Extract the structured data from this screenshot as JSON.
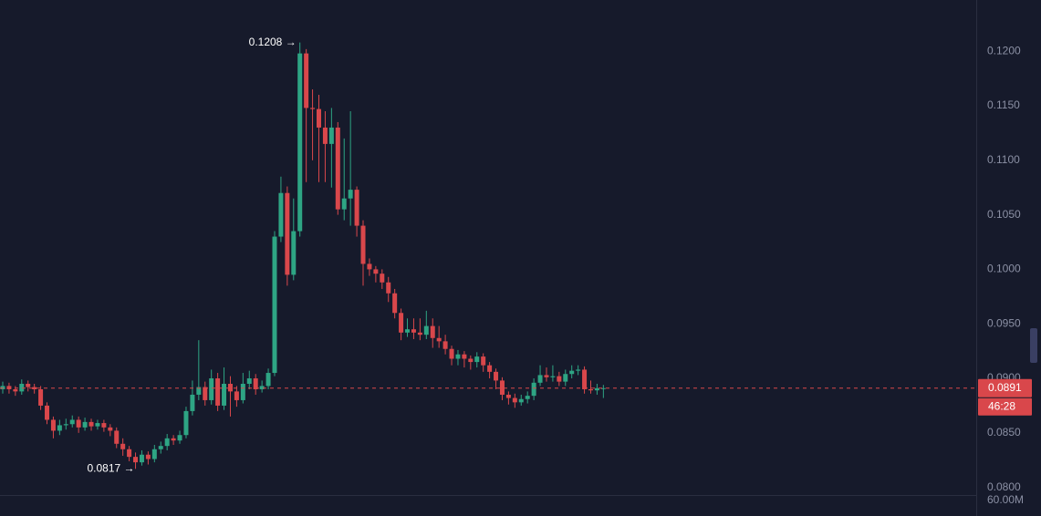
{
  "chart_data": {
    "type": "candlestick",
    "open": [
      0.089,
      0.0893,
      0.089,
      0.0888,
      0.0895,
      0.0892,
      0.089,
      0.0875,
      0.0862,
      0.0852,
      0.0857,
      0.0858,
      0.0862,
      0.0855,
      0.086,
      0.0856,
      0.0859,
      0.0855,
      0.0852,
      0.084,
      0.0835,
      0.0828,
      0.0823,
      0.083,
      0.0826,
      0.0835,
      0.0838,
      0.0845,
      0.0843,
      0.0848,
      0.087,
      0.0885,
      0.0892,
      0.088,
      0.09,
      0.0875,
      0.0895,
      0.0888,
      0.088,
      0.0895,
      0.09,
      0.089,
      0.0893,
      0.0905,
      0.103,
      0.107,
      0.0995,
      0.1035,
      0.1198,
      0.1148,
      0.1147,
      0.113,
      0.1115,
      0.113,
      0.1055,
      0.1065,
      0.1073,
      0.104,
      0.1005,
      0.1,
      0.0996,
      0.0988,
      0.0978,
      0.096,
      0.0942,
      0.0945,
      0.0942,
      0.094,
      0.0948,
      0.0937,
      0.0934,
      0.0927,
      0.0918,
      0.0922,
      0.0918,
      0.0915,
      0.092,
      0.0912,
      0.0906,
      0.0898,
      0.0885,
      0.0882,
      0.0878,
      0.0881,
      0.0884,
      0.0896,
      0.0903,
      0.0901,
      0.0902,
      0.0897,
      0.0904,
      0.0907,
      0.0908,
      0.089,
      0.0889,
      0.0891
    ],
    "high": [
      0.0897,
      0.0896,
      0.0893,
      0.0899,
      0.0898,
      0.0895,
      0.0893,
      0.0878,
      0.0865,
      0.0862,
      0.0863,
      0.0866,
      0.0865,
      0.0864,
      0.0863,
      0.0862,
      0.0862,
      0.0858,
      0.0855,
      0.0845,
      0.0838,
      0.0832,
      0.0834,
      0.0833,
      0.0839,
      0.0842,
      0.0849,
      0.0848,
      0.0852,
      0.0874,
      0.0898,
      0.0935,
      0.0897,
      0.0908,
      0.0905,
      0.091,
      0.0902,
      0.0893,
      0.0905,
      0.0907,
      0.0904,
      0.0898,
      0.0909,
      0.1035,
      0.1085,
      0.1076,
      0.1065,
      0.1208,
      0.1202,
      0.1165,
      0.116,
      0.1145,
      0.1148,
      0.1135,
      0.112,
      0.1145,
      0.1076,
      0.1045,
      0.101,
      0.1003,
      0.1,
      0.0993,
      0.0982,
      0.0964,
      0.0955,
      0.0955,
      0.0955,
      0.0962,
      0.0955,
      0.0948,
      0.094,
      0.093,
      0.0926,
      0.0925,
      0.0921,
      0.0924,
      0.0923,
      0.0915,
      0.0909,
      0.0901,
      0.0888,
      0.0886,
      0.0885,
      0.0888,
      0.09,
      0.0912,
      0.091,
      0.0912,
      0.0906,
      0.0908,
      0.0912,
      0.0912,
      0.0911,
      0.0898,
      0.0895,
      0.0894
    ],
    "low": [
      0.0886,
      0.0886,
      0.0884,
      0.0885,
      0.0888,
      0.0886,
      0.0871,
      0.0858,
      0.0845,
      0.0848,
      0.0853,
      0.0855,
      0.085,
      0.0852,
      0.0852,
      0.0853,
      0.0851,
      0.0847,
      0.0836,
      0.0829,
      0.0824,
      0.0817,
      0.082,
      0.0821,
      0.0823,
      0.0831,
      0.0834,
      0.0839,
      0.084,
      0.0845,
      0.0866,
      0.088,
      0.0875,
      0.0876,
      0.087,
      0.0871,
      0.0865,
      0.0874,
      0.0877,
      0.089,
      0.0885,
      0.0887,
      0.089,
      0.0902,
      0.1025,
      0.0985,
      0.099,
      0.103,
      0.108,
      0.11,
      0.108,
      0.108,
      0.1075,
      0.105,
      0.1045,
      0.104,
      0.103,
      0.0985,
      0.0994,
      0.0988,
      0.0982,
      0.097,
      0.0955,
      0.0935,
      0.0938,
      0.0936,
      0.0935,
      0.0936,
      0.0928,
      0.0928,
      0.0922,
      0.0912,
      0.0912,
      0.091,
      0.0908,
      0.091,
      0.0906,
      0.09,
      0.089,
      0.088,
      0.0876,
      0.0873,
      0.0875,
      0.0877,
      0.088,
      0.0893,
      0.0897,
      0.0897,
      0.0893,
      0.0893,
      0.09,
      0.0903,
      0.0886,
      0.0886,
      0.0885,
      0.0882
    ],
    "close": [
      0.0893,
      0.089,
      0.0888,
      0.0895,
      0.0892,
      0.089,
      0.0875,
      0.0862,
      0.0852,
      0.0857,
      0.0858,
      0.0862,
      0.0855,
      0.086,
      0.0856,
      0.0859,
      0.0855,
      0.0852,
      0.084,
      0.0835,
      0.0828,
      0.0823,
      0.083,
      0.0826,
      0.0835,
      0.0838,
      0.0845,
      0.0843,
      0.0848,
      0.087,
      0.0885,
      0.0892,
      0.088,
      0.09,
      0.0875,
      0.0895,
      0.0888,
      0.088,
      0.0895,
      0.09,
      0.089,
      0.0893,
      0.0905,
      0.103,
      0.107,
      0.0995,
      0.1035,
      0.1198,
      0.1148,
      0.1147,
      0.113,
      0.1115,
      0.113,
      0.1055,
      0.1065,
      0.1073,
      0.104,
      0.1005,
      0.1,
      0.0996,
      0.0988,
      0.0978,
      0.096,
      0.0942,
      0.0945,
      0.0942,
      0.094,
      0.0948,
      0.0937,
      0.0934,
      0.0927,
      0.0918,
      0.0922,
      0.0918,
      0.0915,
      0.092,
      0.0912,
      0.0906,
      0.0898,
      0.0885,
      0.0882,
      0.0878,
      0.0881,
      0.0884,
      0.0896,
      0.0903,
      0.0901,
      0.0902,
      0.0897,
      0.0904,
      0.0907,
      0.0908,
      0.089,
      0.0889,
      0.0891,
      0.0891
    ],
    "up_color": "#2ea584",
    "down_color": "#d9474b",
    "ylim": [
      0.0793,
      0.1247
    ],
    "yticks": [
      {
        "value": 0.08,
        "label": "0.0800"
      },
      {
        "value": 0.085,
        "label": "0.0850"
      },
      {
        "value": 0.09,
        "label": "0.0900"
      },
      {
        "value": 0.095,
        "label": "0.0950"
      },
      {
        "value": 0.1,
        "label": "0.1000"
      },
      {
        "value": 0.105,
        "label": "0.1050"
      },
      {
        "value": 0.11,
        "label": "0.1100"
      },
      {
        "value": 0.115,
        "label": "0.1150"
      },
      {
        "value": 0.12,
        "label": "0.1200"
      }
    ],
    "high_label": "0.1208 →",
    "low_label": "0.0817 →",
    "last_price_label": "0.0891",
    "countdown": "46:28",
    "volume_label": "60.00M"
  }
}
